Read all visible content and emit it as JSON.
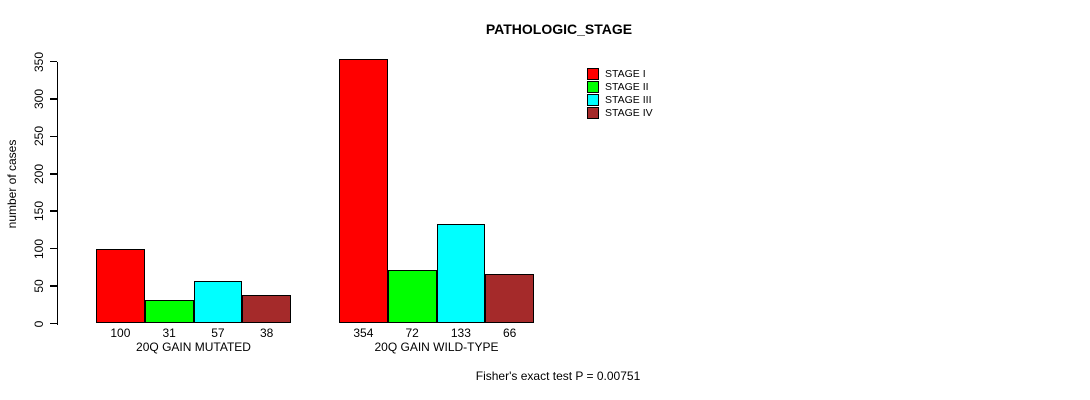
{
  "figure": {
    "background_color": "#ffffff",
    "foreground_color": "#000000"
  },
  "chart_data": {
    "type": "bar",
    "title": "PATHOLOGIC_STAGE",
    "xlabel": "",
    "ylabel": "number of cases",
    "ylim": [
      0,
      350
    ],
    "yticks": [
      0,
      50,
      100,
      150,
      200,
      250,
      300,
      350
    ],
    "grid": false,
    "bar_value_labels_shown": true,
    "legend_position": "inside-top-right",
    "series": [
      {
        "name": "STAGE I",
        "color": "#FF0000"
      },
      {
        "name": "STAGE II",
        "color": "#00FF00"
      },
      {
        "name": "STAGE III",
        "color": "#00FFFF"
      },
      {
        "name": "STAGE IV",
        "color": "#A52A2A"
      }
    ],
    "groups": [
      {
        "label": "20Q GAIN MUTATED",
        "values": [
          100,
          31,
          57,
          38
        ]
      },
      {
        "label": "20Q GAIN WILD-TYPE",
        "values": [
          354,
          72,
          133,
          66
        ]
      }
    ],
    "footnote": "Fisher's exact test P = 0.00751"
  }
}
